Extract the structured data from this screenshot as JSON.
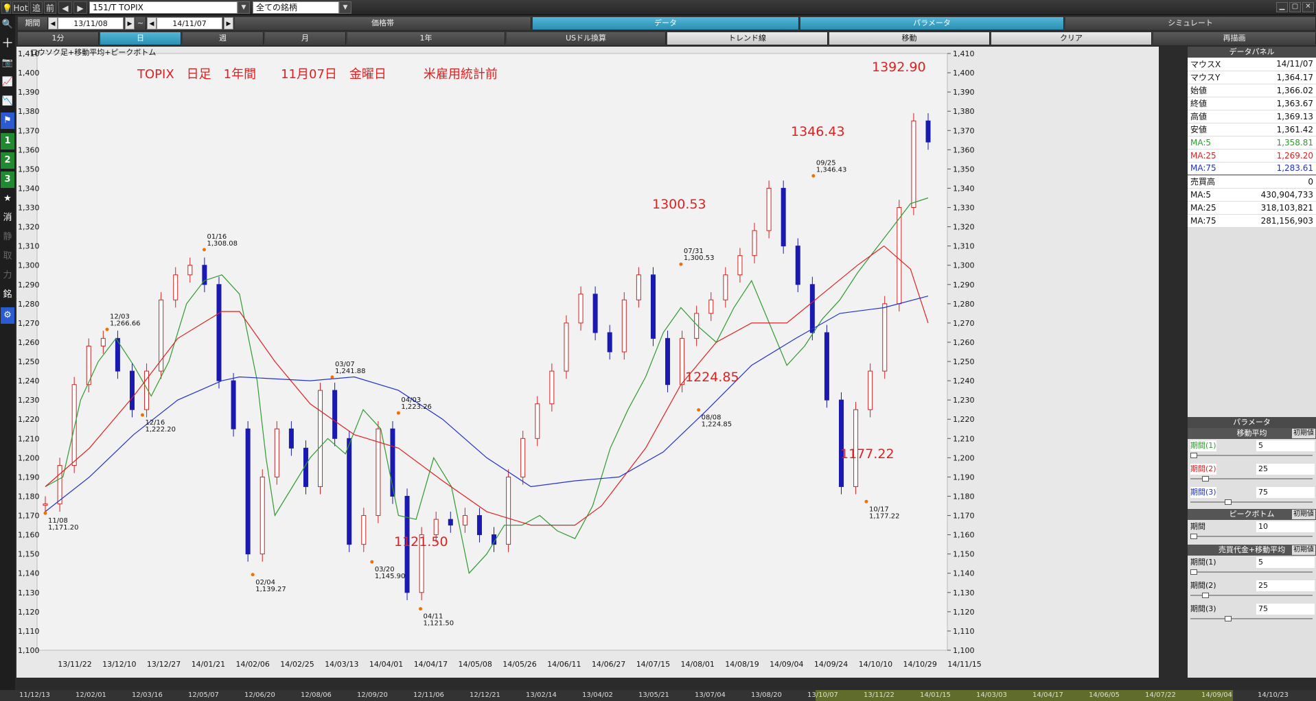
{
  "topbar": {
    "hot": "Hot",
    "follow": "追",
    "prev": "前",
    "symbol": "151/T TOPIX",
    "filter": "全ての銘柄"
  },
  "period_row": {
    "label": "期間",
    "from": "13/11/08",
    "tilde": "~",
    "to": "14/11/07",
    "tabs": [
      "価格帯",
      "データ",
      "パラメータ",
      "シミュレート"
    ]
  },
  "interval_row": {
    "tabs": [
      "1分",
      "日",
      "週",
      "月",
      "1年",
      "USドル換算",
      "トレンド線",
      "移動",
      "クリア",
      "再描画"
    ]
  },
  "left_tools": [
    "search-icon",
    "crosshair-icon",
    "camera-icon",
    "chart-icon",
    "chart2-icon",
    "flag-icon",
    "1",
    "2",
    "3",
    "star-icon",
    "消",
    "静",
    "取",
    "力",
    "銘",
    "gear-icon"
  ],
  "chart_caption": "ロウソク足+移動平均+ピークボトム",
  "annotation_title": "TOPIX　日足　1年間　　11月07日　金曜日　　　米雇用統計前",
  "callouts": [
    "1392.90",
    "1346.43",
    "1300.53",
    "1224.85",
    "1177.22",
    "1121.50"
  ],
  "peaks": [
    {
      "date": "11/08",
      "value": "1,171.20"
    },
    {
      "date": "12/03",
      "value": "1,266.66"
    },
    {
      "date": "12/16",
      "value": "1,222.20"
    },
    {
      "date": "01/16",
      "value": "1,308.08"
    },
    {
      "date": "02/04",
      "value": "1,139.27"
    },
    {
      "date": "03/07",
      "value": "1,241.88"
    },
    {
      "date": "03/20",
      "value": "1,145.90"
    },
    {
      "date": "04/03",
      "value": "1,223.26"
    },
    {
      "date": "04/11",
      "value": "1,121.50"
    },
    {
      "date": "07/31",
      "value": "1,300.53"
    },
    {
      "date": "08/08",
      "value": "1,224.85"
    },
    {
      "date": "09/25",
      "value": "1,346.43"
    },
    {
      "date": "10/17",
      "value": "1,177.22"
    }
  ],
  "data_panel": {
    "title": "データパネル",
    "rows": [
      {
        "label": "マウスX",
        "value": "14/11/07"
      },
      {
        "label": "マウスY",
        "value": "1,364.17"
      },
      {
        "label": "始値",
        "value": "1,366.02"
      },
      {
        "label": "終値",
        "value": "1,363.67"
      },
      {
        "label": "高値",
        "value": "1,369.13"
      },
      {
        "label": "安値",
        "value": "1,361.42"
      },
      {
        "label": "MA:5",
        "value": "1,358.81",
        "color": "#2e9b2e"
      },
      {
        "label": "MA:25",
        "value": "1,269.20",
        "color": "#e02020"
      },
      {
        "label": "MA:75",
        "value": "1,283.61",
        "color": "#2030d0"
      },
      {
        "label": "売買高",
        "value": "0"
      },
      {
        "label": "MA:5",
        "value": "430,904,733"
      },
      {
        "label": "MA:25",
        "value": "318,103,821"
      },
      {
        "label": "MA:75",
        "value": "281,156,903"
      }
    ]
  },
  "parameters": {
    "title": "パラメータ",
    "init": "初期値",
    "ma_title": "移動平均",
    "ma": [
      {
        "label": "期間(1)",
        "value": "5",
        "color": "#2e9b2e",
        "level": 0.0
      },
      {
        "label": "期間(2)",
        "value": "25",
        "color": "#e02020",
        "level": 0.1
      },
      {
        "label": "期間(3)",
        "value": "75",
        "color": "#2030d0",
        "level": 0.3
      }
    ],
    "pb_title": "ピークボトム",
    "pb": [
      {
        "label": "期間",
        "value": "10",
        "level": 0.0
      }
    ],
    "vol_title": "売買代金+移動平均",
    "vol": [
      {
        "label": "期間(1)",
        "value": "5",
        "level": 0.0
      },
      {
        "label": "期間(2)",
        "value": "25",
        "level": 0.1
      },
      {
        "label": "期間(3)",
        "value": "75",
        "level": 0.3
      }
    ]
  },
  "nav_labels": [
    "11/12/13",
    "12/02/01",
    "12/03/16",
    "12/05/07",
    "12/06/20",
    "12/08/06",
    "12/09/20",
    "12/11/06",
    "12/12/21",
    "13/02/14",
    "13/04/02",
    "13/05/21",
    "13/07/04",
    "13/08/20",
    "13/10/07",
    "13/11/22",
    "14/01/15",
    "14/03/03",
    "14/04/17",
    "14/06/05",
    "14/07/22",
    "14/09/04",
    "14/10/23"
  ],
  "chart_data": {
    "type": "candlestick",
    "title": "TOPIX　日足　1年間　　11月07日　金曜日　　　米雇用統計前",
    "ylim": [
      1100,
      1410
    ],
    "yticks": [
      1100,
      1110,
      1120,
      1130,
      1140,
      1150,
      1160,
      1170,
      1180,
      1190,
      1200,
      1210,
      1220,
      1230,
      1240,
      1250,
      1260,
      1270,
      1280,
      1290,
      1300,
      1310,
      1320,
      1330,
      1340,
      1350,
      1360,
      1370,
      1380,
      1390,
      1400,
      1410
    ],
    "xticks": [
      "13/11/22",
      "13/12/10",
      "13/12/27",
      "14/01/21",
      "14/02/06",
      "14/02/25",
      "14/03/13",
      "14/04/01",
      "14/04/17",
      "14/05/08",
      "14/05/26",
      "14/06/11",
      "14/06/27",
      "14/07/15",
      "14/08/01",
      "14/08/19",
      "14/09/04",
      "14/09/24",
      "14/10/10",
      "14/10/29",
      "14/11/15"
    ],
    "close_path": [
      [
        "13/11/08",
        1176
      ],
      [
        "13/11/15",
        1196
      ],
      [
        "13/11/22",
        1238
      ],
      [
        "13/11/29",
        1258
      ],
      [
        "13/12/03",
        1262
      ],
      [
        "13/12/10",
        1245
      ],
      [
        "13/12/16",
        1225
      ],
      [
        "13/12/20",
        1245
      ],
      [
        "13/12/27",
        1282
      ],
      [
        "14/01/06",
        1295
      ],
      [
        "14/01/16",
        1300
      ],
      [
        "14/01/21",
        1290
      ],
      [
        "14/01/27",
        1240
      ],
      [
        "14/01/31",
        1215
      ],
      [
        "14/02/04",
        1150
      ],
      [
        "14/02/10",
        1190
      ],
      [
        "14/02/17",
        1215
      ],
      [
        "14/02/25",
        1205
      ],
      [
        "14/03/03",
        1185
      ],
      [
        "14/03/07",
        1235
      ],
      [
        "14/03/13",
        1210
      ],
      [
        "14/03/20",
        1155
      ],
      [
        "14/03/26",
        1170
      ],
      [
        "14/04/03",
        1215
      ],
      [
        "14/04/08",
        1180
      ],
      [
        "14/04/11",
        1130
      ],
      [
        "14/04/17",
        1160
      ],
      [
        "14/04/25",
        1168
      ],
      [
        "14/05/02",
        1165
      ],
      [
        "14/05/08",
        1170
      ],
      [
        "14/05/15",
        1160
      ],
      [
        "14/05/21",
        1155
      ],
      [
        "14/05/26",
        1190
      ],
      [
        "14/06/02",
        1210
      ],
      [
        "14/06/11",
        1228
      ],
      [
        "14/06/18",
        1245
      ],
      [
        "14/06/27",
        1270
      ],
      [
        "14/07/03",
        1285
      ],
      [
        "14/07/10",
        1265
      ],
      [
        "14/07/15",
        1255
      ],
      [
        "14/07/24",
        1282
      ],
      [
        "14/07/31",
        1295
      ],
      [
        "14/08/05",
        1262
      ],
      [
        "14/08/08",
        1238
      ],
      [
        "14/08/14",
        1262
      ],
      [
        "14/08/19",
        1275
      ],
      [
        "14/08/26",
        1282
      ],
      [
        "14/09/04",
        1295
      ],
      [
        "14/09/11",
        1305
      ],
      [
        "14/09/18",
        1318
      ],
      [
        "14/09/25",
        1340
      ],
      [
        "14/10/01",
        1310
      ],
      [
        "14/10/07",
        1290
      ],
      [
        "14/10/10",
        1265
      ],
      [
        "14/10/14",
        1230
      ],
      [
        "14/10/17",
        1185
      ],
      [
        "14/10/22",
        1225
      ],
      [
        "14/10/27",
        1245
      ],
      [
        "14/10/30",
        1280
      ],
      [
        "14/10/31",
        1330
      ],
      [
        "14/11/04",
        1375
      ],
      [
        "14/11/07",
        1364
      ]
    ],
    "ma_series": [
      {
        "name": "MA:5",
        "color": "#2e9b2e",
        "values": [
          [
            0,
            1185
          ],
          [
            0.02,
            1190
          ],
          [
            0.04,
            1230
          ],
          [
            0.06,
            1250
          ],
          [
            0.08,
            1262
          ],
          [
            0.1,
            1248
          ],
          [
            0.12,
            1232
          ],
          [
            0.14,
            1250
          ],
          [
            0.16,
            1280
          ],
          [
            0.18,
            1292
          ],
          [
            0.2,
            1295
          ],
          [
            0.22,
            1285
          ],
          [
            0.24,
            1240
          ],
          [
            0.25,
            1200
          ],
          [
            0.26,
            1170
          ],
          [
            0.28,
            1185
          ],
          [
            0.3,
            1200
          ],
          [
            0.32,
            1210
          ],
          [
            0.34,
            1202
          ],
          [
            0.36,
            1225
          ],
          [
            0.38,
            1215
          ],
          [
            0.4,
            1170
          ],
          [
            0.42,
            1168
          ],
          [
            0.44,
            1200
          ],
          [
            0.46,
            1185
          ],
          [
            0.48,
            1140
          ],
          [
            0.5,
            1150
          ],
          [
            0.52,
            1165
          ],
          [
            0.54,
            1165
          ],
          [
            0.56,
            1170
          ],
          [
            0.58,
            1162
          ],
          [
            0.6,
            1158
          ],
          [
            0.62,
            1175
          ],
          [
            0.64,
            1205
          ],
          [
            0.66,
            1225
          ],
          [
            0.68,
            1242
          ],
          [
            0.7,
            1265
          ],
          [
            0.72,
            1278
          ],
          [
            0.74,
            1268
          ],
          [
            0.76,
            1260
          ],
          [
            0.78,
            1278
          ],
          [
            0.8,
            1292
          ],
          [
            0.82,
            1270
          ],
          [
            0.84,
            1248
          ],
          [
            0.86,
            1258
          ],
          [
            0.88,
            1272
          ],
          [
            0.9,
            1282
          ],
          [
            0.92,
            1296
          ],
          [
            0.94,
            1308
          ],
          [
            0.96,
            1320
          ],
          [
            0.98,
            1332
          ],
          [
            1.0,
            1335
          ]
        ]
      },
      {
        "name": "MA:25",
        "color": "#e02020",
        "values": [
          [
            0,
            1185
          ],
          [
            0.05,
            1205
          ],
          [
            0.1,
            1232
          ],
          [
            0.15,
            1262
          ],
          [
            0.2,
            1276
          ],
          [
            0.22,
            1276
          ],
          [
            0.26,
            1250
          ],
          [
            0.3,
            1228
          ],
          [
            0.35,
            1212
          ],
          [
            0.4,
            1205
          ],
          [
            0.45,
            1188
          ],
          [
            0.5,
            1172
          ],
          [
            0.55,
            1165
          ],
          [
            0.6,
            1165
          ],
          [
            0.63,
            1175
          ],
          [
            0.68,
            1205
          ],
          [
            0.72,
            1238
          ],
          [
            0.76,
            1260
          ],
          [
            0.8,
            1270
          ],
          [
            0.84,
            1270
          ],
          [
            0.88,
            1285
          ],
          [
            0.92,
            1300
          ],
          [
            0.95,
            1310
          ],
          [
            0.98,
            1298
          ],
          [
            1.0,
            1270
          ]
        ]
      },
      {
        "name": "MA:75",
        "color": "#2030d0",
        "values": [
          [
            0,
            1172
          ],
          [
            0.05,
            1190
          ],
          [
            0.1,
            1212
          ],
          [
            0.15,
            1230
          ],
          [
            0.2,
            1240
          ],
          [
            0.22,
            1242
          ],
          [
            0.3,
            1240
          ],
          [
            0.35,
            1242
          ],
          [
            0.4,
            1235
          ],
          [
            0.45,
            1220
          ],
          [
            0.5,
            1200
          ],
          [
            0.55,
            1185
          ],
          [
            0.6,
            1188
          ],
          [
            0.65,
            1190
          ],
          [
            0.7,
            1203
          ],
          [
            0.75,
            1225
          ],
          [
            0.8,
            1248
          ],
          [
            0.85,
            1262
          ],
          [
            0.9,
            1275
          ],
          [
            0.95,
            1278
          ],
          [
            1.0,
            1284
          ]
        ]
      }
    ]
  }
}
